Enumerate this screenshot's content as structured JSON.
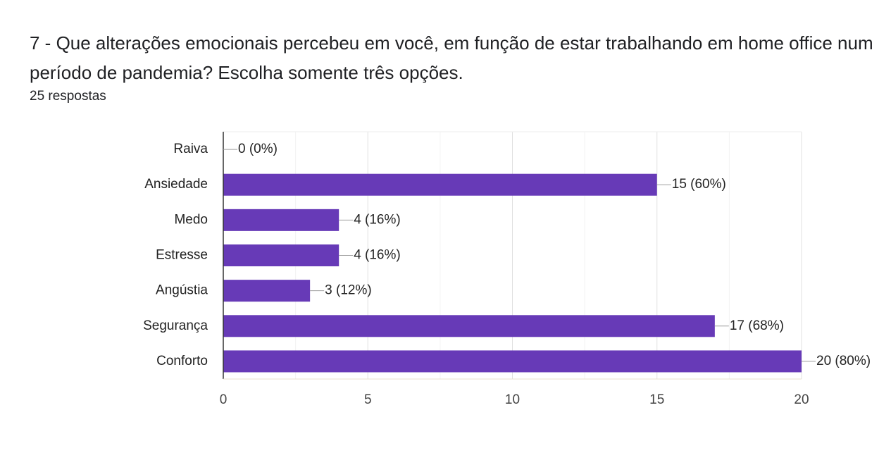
{
  "header": {
    "question": "7 - Que alterações emocionais percebeu em você, em função de estar trabalhando em home office num período de pandemia? Escolha somente três opções.",
    "responses": "25 respostas"
  },
  "chart_data": {
    "type": "bar",
    "orientation": "horizontal",
    "categories": [
      "Raiva",
      "Ansiedade",
      "Medo",
      "Estresse",
      "Angústia",
      "Segurança",
      "Conforto"
    ],
    "values": [
      0,
      15,
      4,
      4,
      3,
      17,
      20
    ],
    "data_labels": [
      "0 (0%)",
      "15 (60%)",
      "4 (16%)",
      "4 (16%)",
      "3 (12%)",
      "17 (68%)",
      "20 (80%)"
    ],
    "xlim": [
      0,
      20
    ],
    "xticks": [
      0,
      5,
      10,
      15,
      20
    ],
    "grid": true,
    "bar_color": "#673ab7"
  }
}
